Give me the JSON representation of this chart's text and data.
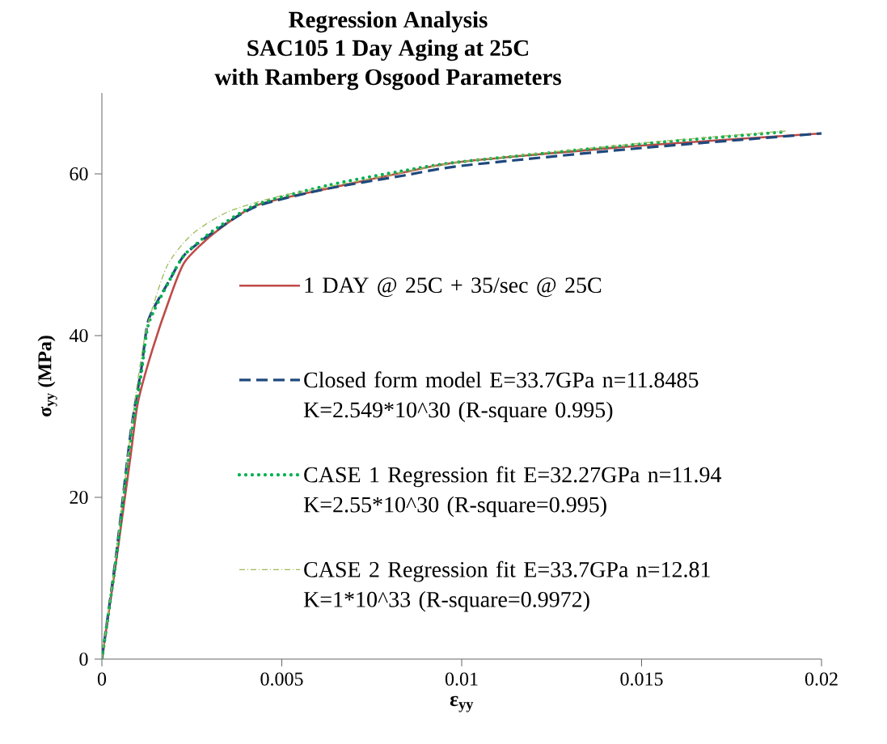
{
  "chart_data": {
    "type": "line",
    "title": "Regression Analysis",
    "subtitle": "SAC105 1 Day Aging at 25C",
    "annotations": [
      "with Ramberg Osgood Parameters"
    ],
    "xlabel": "ε$_{yy}$",
    "ylabel": "σ$_{yy}$ (MPa)",
    "xlim": [
      0,
      0.02
    ],
    "ylim": [
      0,
      70
    ],
    "xticks": [
      0,
      0.005,
      0.01,
      0.015,
      0.02
    ],
    "yticks": [
      0,
      20,
      40,
      60
    ],
    "grid": false,
    "legend": "right",
    "marker": "none",
    "series": [
      {
        "name": "1 DAY @ 25C + 35/sec @ 25C",
        "color": "#be4b48",
        "line_style": "solid",
        "x": [
          0,
          0.0004,
          0.0008,
          0.001,
          0.0014,
          0.0019,
          0.0023,
          0.0031,
          0.0043,
          0.0063,
          0.0084,
          0.01,
          0.015,
          0.02
        ],
        "values": [
          0,
          12.2,
          25.2,
          31.7,
          38.2,
          44.8,
          49.1,
          52.6,
          56.1,
          58.2,
          60.2,
          61.5,
          63.5,
          65
        ]
      },
      {
        "name": "Closed form model  E=33.7GPa   n=11.8485 K=2.549*10^30 (R-square 0.995)",
        "color": "#1f497d",
        "line_style": "dashed",
        "x": [
          0,
          0.0004,
          0.0008,
          0.0011,
          0.0013,
          0.0019,
          0.0023,
          0.0031,
          0.0043,
          0.0063,
          0.0084,
          0.01,
          0.015,
          0.02
        ],
        "values": [
          0,
          13,
          28,
          36,
          42,
          47,
          50,
          52.8,
          56,
          58.2,
          59.8,
          61,
          63.2,
          65
        ]
      },
      {
        "name": "CASE 1 Regression fit   E=32.27GPa  n=11.94 K=2.55*10^30 (R-square=0.995)",
        "color": "#00b050",
        "line_style": "dotted",
        "x": [
          0,
          0.0004,
          0.0008,
          0.0011,
          0.0013,
          0.0019,
          0.0023,
          0.0031,
          0.0043,
          0.0063,
          0.0084,
          0.01,
          0.015,
          0.019
        ],
        "values": [
          0,
          12.5,
          27,
          35.5,
          41.5,
          47,
          50,
          53,
          56.2,
          58.6,
          60.4,
          61.5,
          63.7,
          65.2
        ]
      },
      {
        "name": "CASE 2 Regression fit   E=33.7GPa  n=12.81 K=1*10^33 (R-square=0.9972)",
        "color": "#9bbb59",
        "line_style": "dashdot",
        "x": [
          0,
          0.0004,
          0.0008,
          0.0012,
          0.0018,
          0.0025,
          0.0035,
          0.005,
          0.0075,
          0.01,
          0.015,
          0.019
        ],
        "values": [
          0,
          13,
          28,
          40,
          48.5,
          52.5,
          55.3,
          57.3,
          59.4,
          61.5,
          63.8,
          65.3
        ]
      }
    ]
  }
}
